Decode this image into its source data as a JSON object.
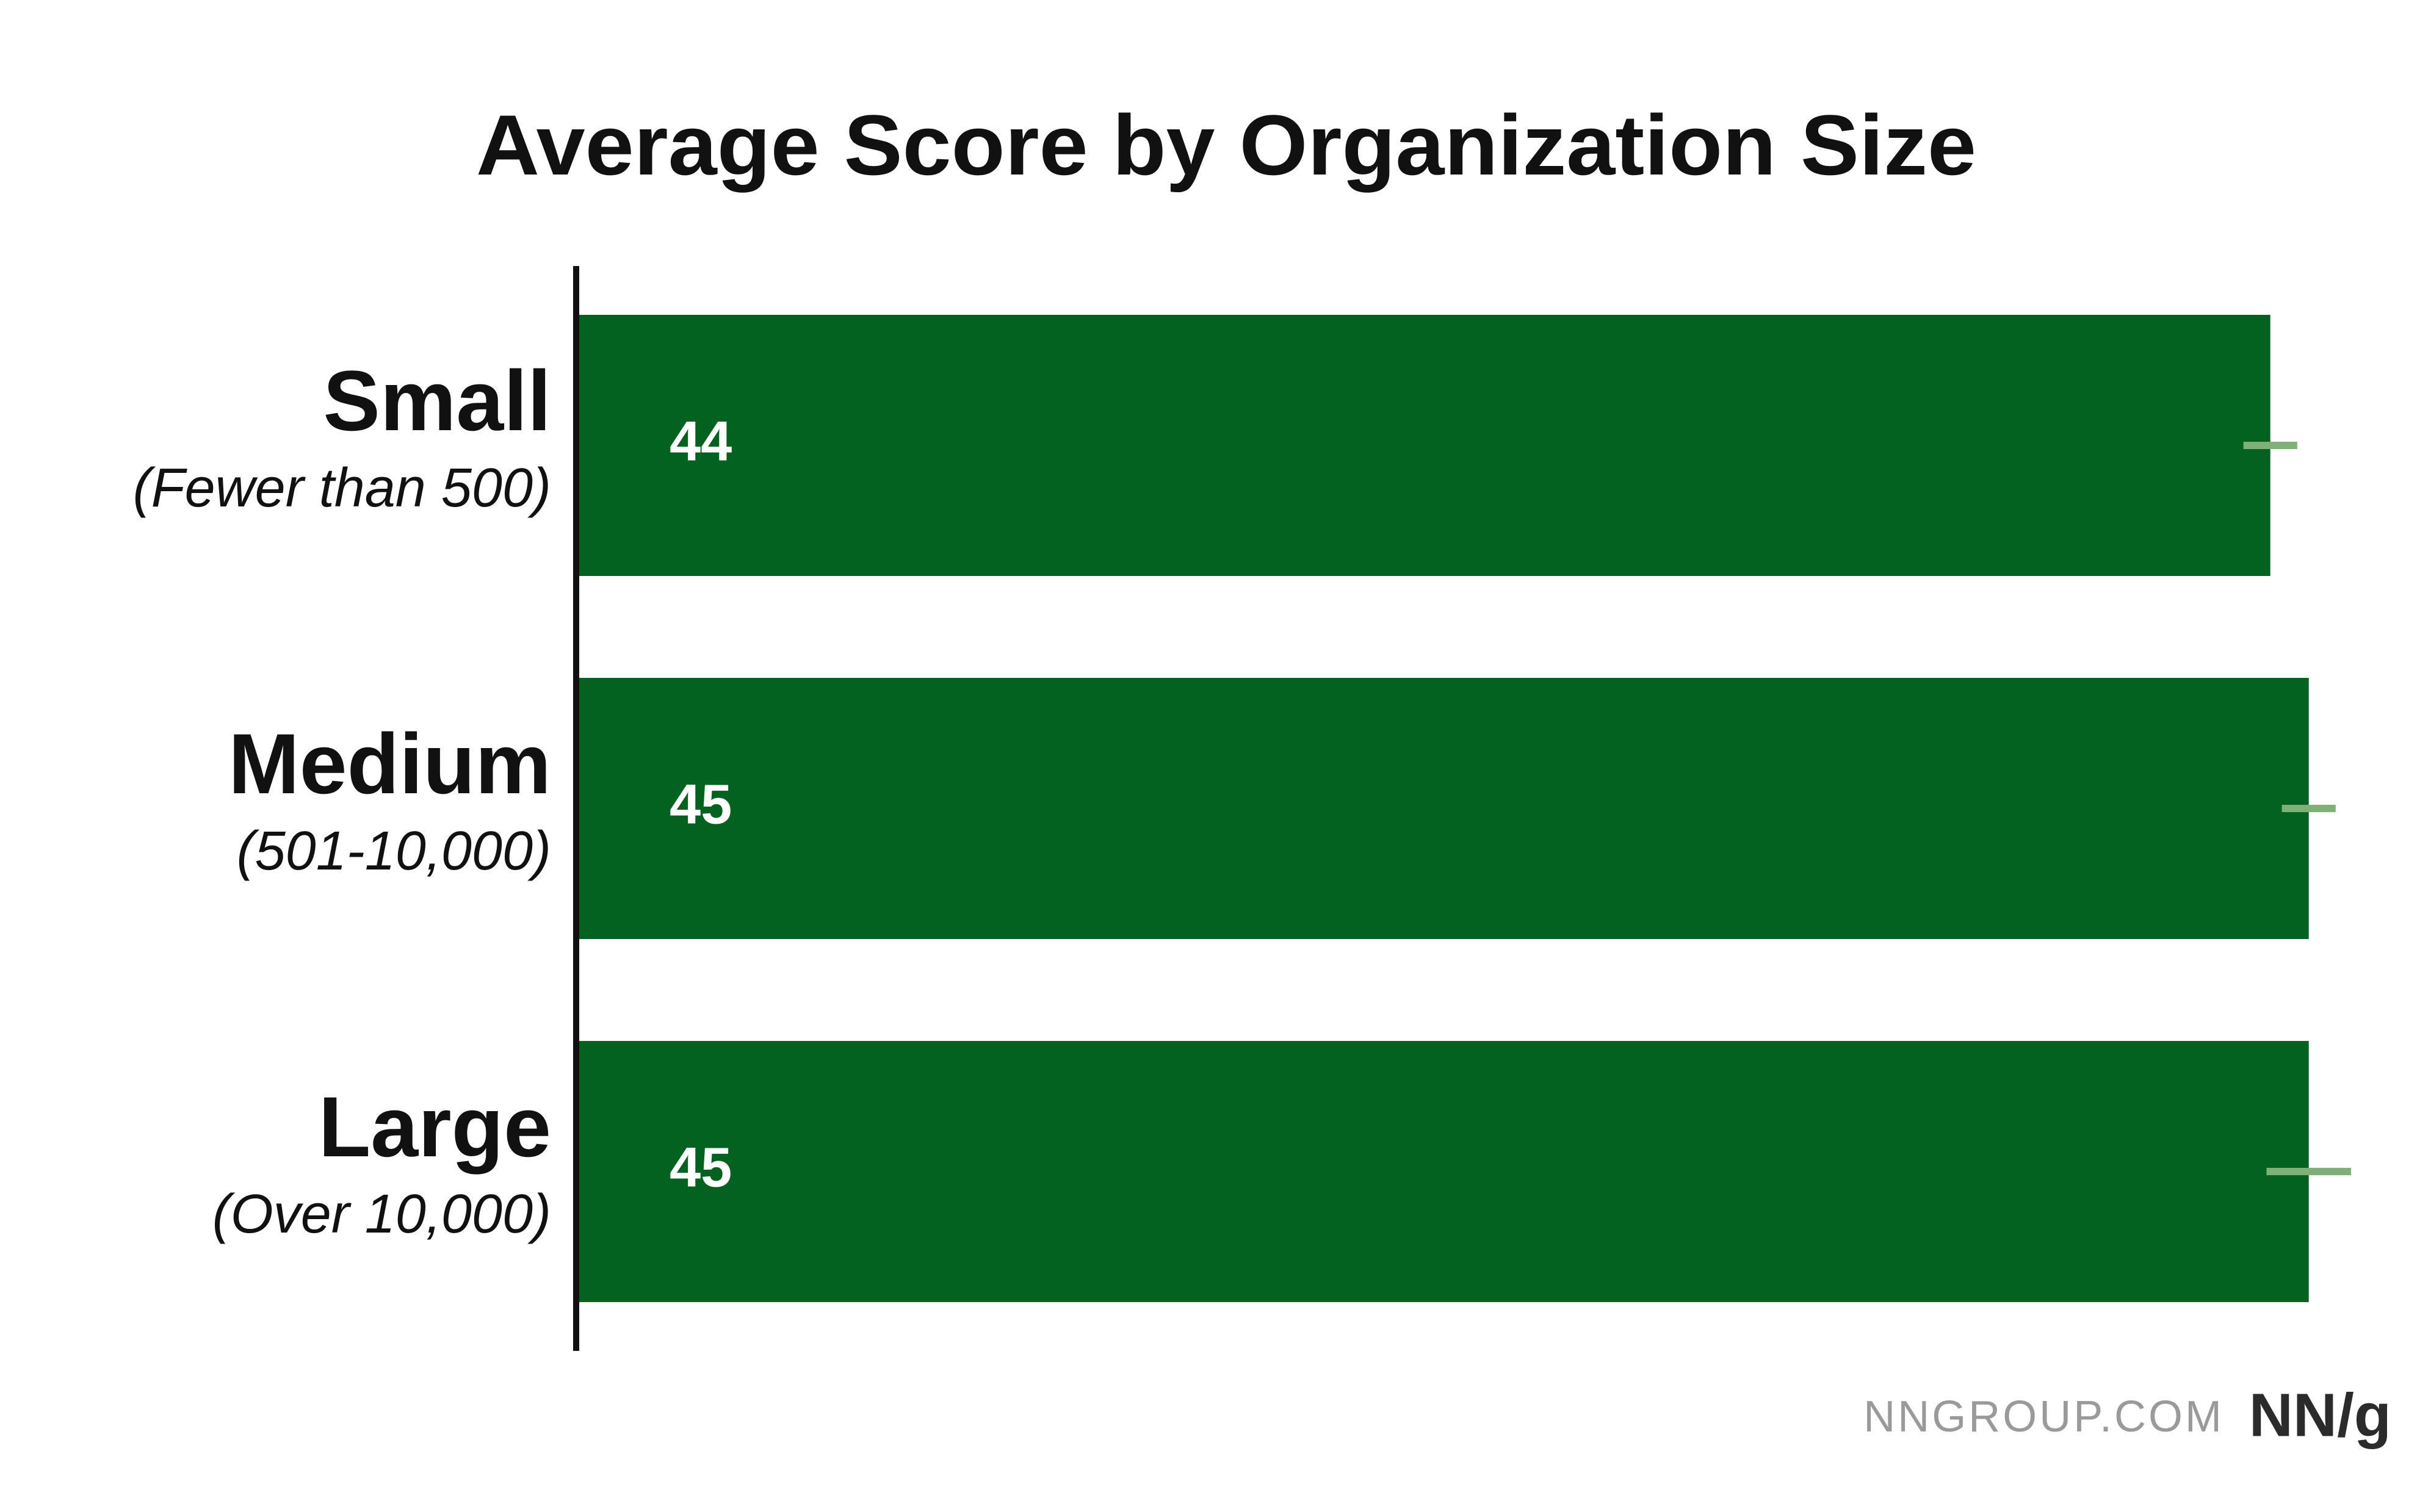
{
  "chart_data": {
    "type": "bar",
    "orientation": "horizontal",
    "title": "Average Score by Organization Size",
    "categories": [
      "Small",
      "Medium",
      "Large"
    ],
    "category_notes": [
      "(Fewer than 500)",
      "(501-10,000)",
      "(Over 10,000)"
    ],
    "values": [
      44,
      45,
      45
    ],
    "errors": [
      0.7,
      0.7,
      1.1
    ],
    "color": "#03621f",
    "error_color": "#7fb077",
    "source": "NNGROUP.COM",
    "logo": "NN/g"
  }
}
